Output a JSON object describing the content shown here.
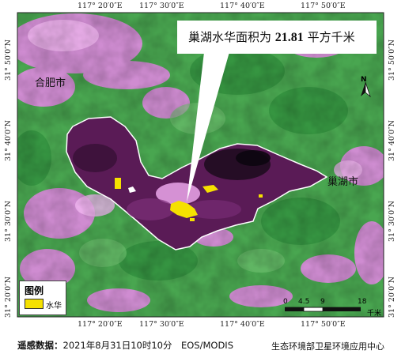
{
  "map": {
    "callout_prefix": "巢湖水华面积为",
    "callout_value": "21.81",
    "callout_suffix": "平方千米",
    "cities": [
      {
        "name": "合肥市"
      },
      {
        "name": "巢湖市"
      }
    ],
    "lon_ticks": [
      "117° 20′0″E",
      "117° 30′0″E",
      "117° 40′0″E",
      "117° 50′0″E"
    ],
    "lat_ticks": [
      "31° 50′0″N",
      "31° 40′0″N",
      "31° 30′0″N",
      "31° 20′0″N"
    ],
    "north_label": "N",
    "scale_bar": {
      "ticks": [
        "0",
        "4.5",
        "9",
        "18"
      ],
      "unit": "千米"
    },
    "colors": {
      "algae": "#f5e100",
      "lake": "#5a1a55",
      "land_green": "#3ea64a",
      "land_pink": "#d986d9"
    }
  },
  "legend": {
    "title": "图例",
    "item": "水华"
  },
  "footer": {
    "label": "遥感数据：",
    "value": "2021年8月31日10时10分　EOS/MODIS",
    "agency": "生态环境部卫星环境应用中心"
  }
}
